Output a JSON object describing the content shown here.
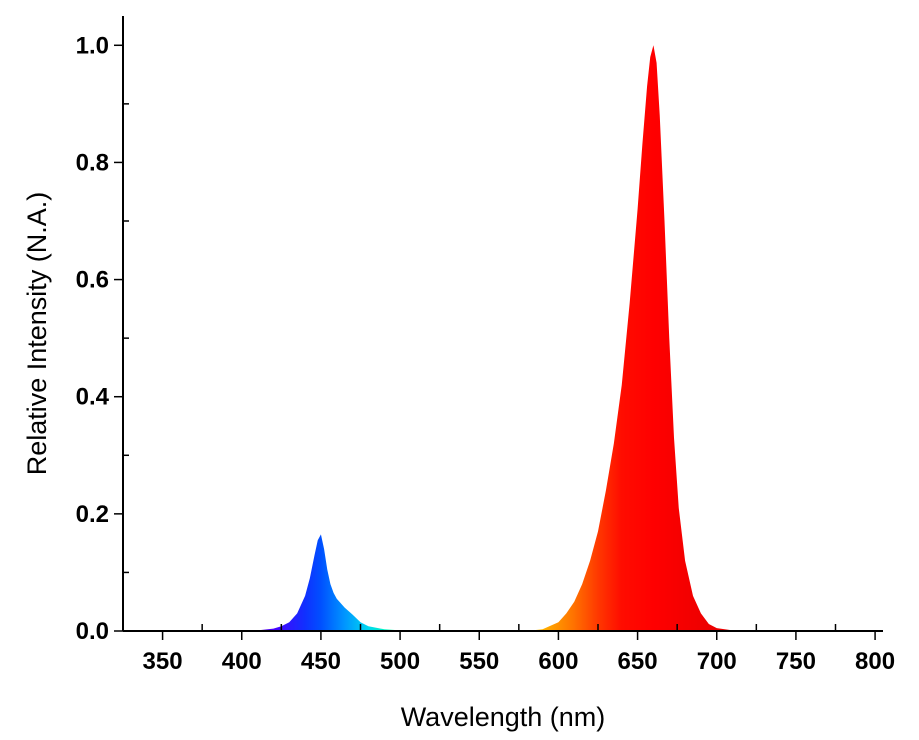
{
  "chart_data": {
    "type": "area",
    "title": "",
    "xlabel": "Wavelength (nm)",
    "ylabel": "Relative Intensity (N.A.)",
    "xlim": [
      325,
      805
    ],
    "ylim": [
      0,
      1.05
    ],
    "x_ticks": [
      350,
      400,
      450,
      500,
      550,
      600,
      650,
      700,
      750,
      800
    ],
    "y_ticks": [
      0.0,
      0.2,
      0.4,
      0.6,
      0.8,
      1.0
    ],
    "x_tick_labels": [
      "350",
      "400",
      "450",
      "500",
      "550",
      "600",
      "650",
      "700",
      "750",
      "800"
    ],
    "y_tick_labels": [
      "0.0",
      "0.2",
      "0.4",
      "0.6",
      "0.8",
      "1.0"
    ],
    "grid": false,
    "legend": "none",
    "fill": "visible-spectrum color gradient by wavelength",
    "series": [
      {
        "x": [
          350,
          400,
          410,
          420,
          425,
          430,
          435,
          440,
          443,
          446,
          448,
          450,
          452,
          454,
          456,
          458,
          460,
          465,
          470,
          475,
          480,
          490,
          500,
          510,
          520,
          550,
          580,
          590,
          600,
          605,
          610,
          615,
          620,
          625,
          630,
          635,
          640,
          645,
          650,
          653,
          656,
          658,
          660,
          662,
          664,
          667,
          670,
          673,
          676,
          680,
          685,
          690,
          695,
          700,
          710,
          720,
          750,
          800
        ],
        "values": [
          0.0,
          0.0,
          0.001,
          0.004,
          0.008,
          0.015,
          0.03,
          0.06,
          0.09,
          0.13,
          0.155,
          0.165,
          0.14,
          0.105,
          0.08,
          0.065,
          0.055,
          0.04,
          0.028,
          0.015,
          0.008,
          0.003,
          0.001,
          0.0,
          0.0,
          0.0,
          0.0,
          0.003,
          0.015,
          0.03,
          0.05,
          0.08,
          0.12,
          0.17,
          0.24,
          0.32,
          0.42,
          0.56,
          0.72,
          0.83,
          0.93,
          0.98,
          1.0,
          0.97,
          0.88,
          0.7,
          0.5,
          0.33,
          0.21,
          0.12,
          0.06,
          0.03,
          0.012,
          0.005,
          0.001,
          0.0,
          0.0,
          0.0
        ]
      }
    ]
  }
}
